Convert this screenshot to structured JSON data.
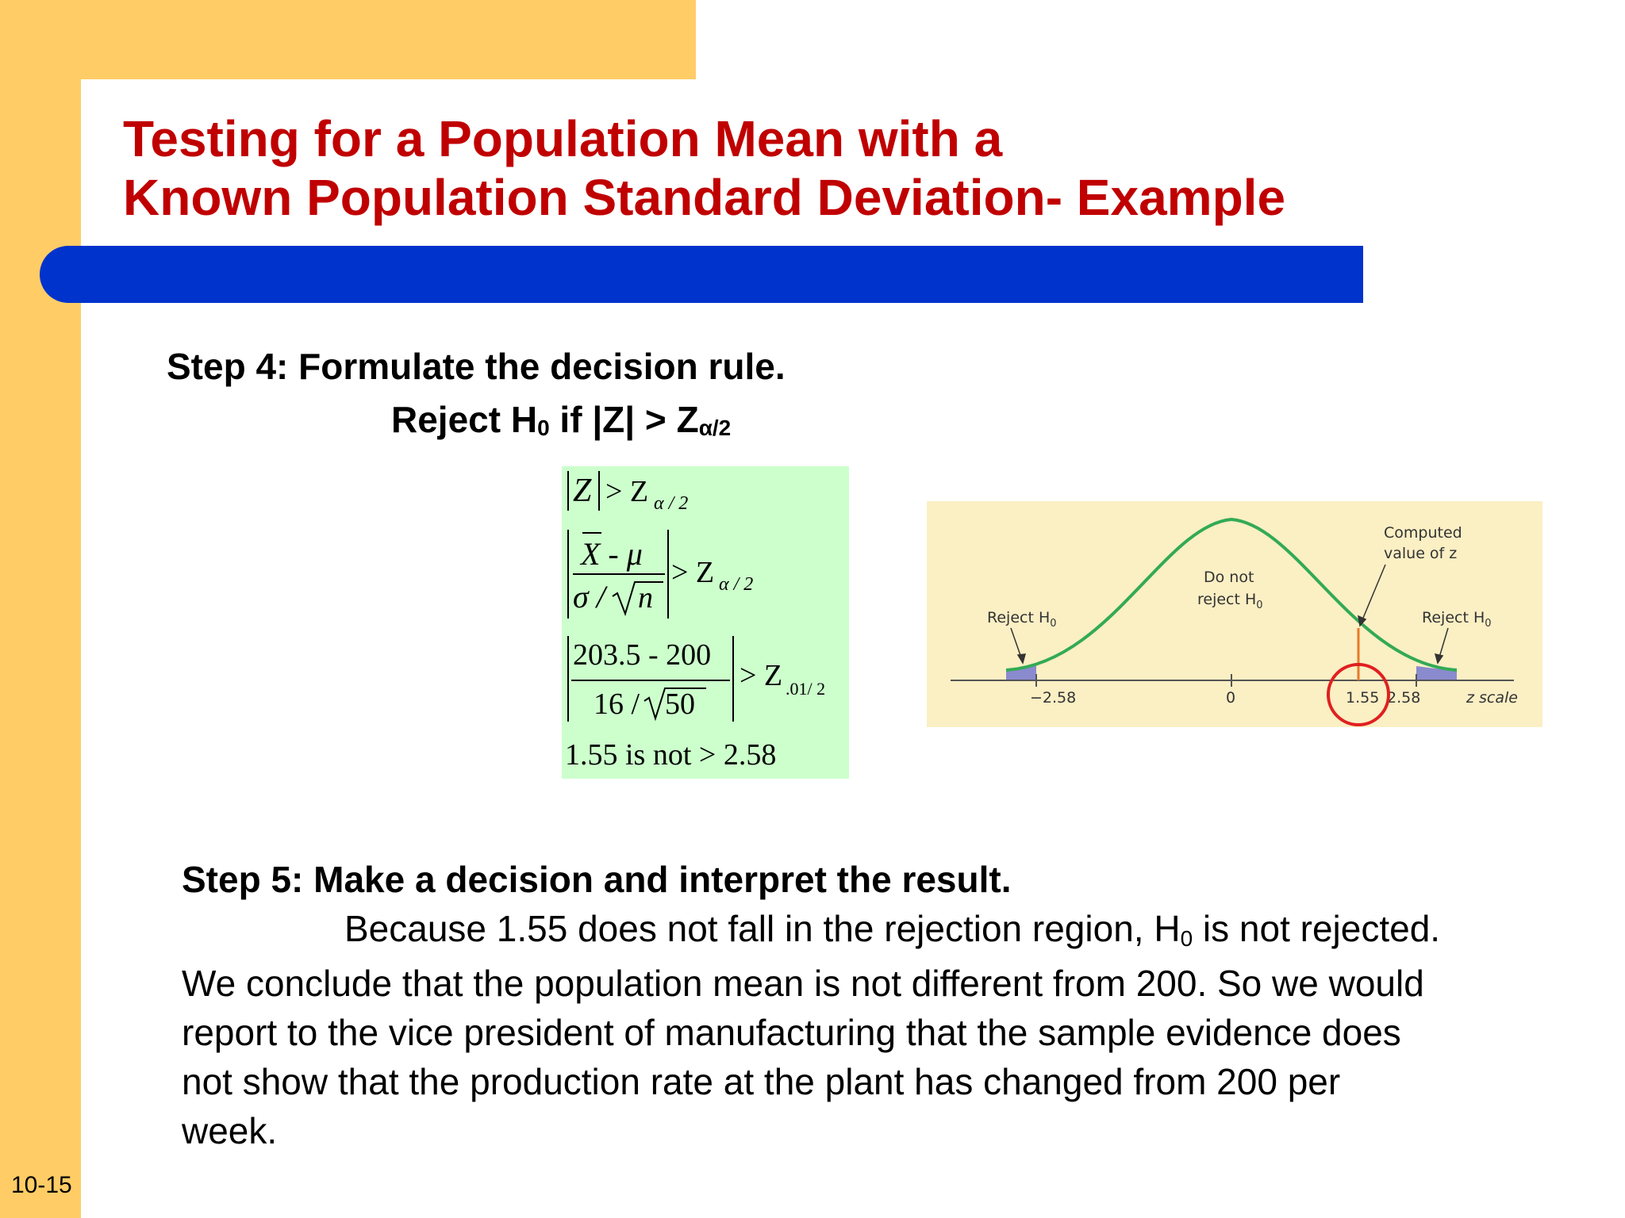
{
  "slide": {
    "title_line1": "Testing for a Population Mean with a",
    "title_line2": "Known Population Standard Deviation- Example",
    "number": "10-15"
  },
  "step4": {
    "heading": "Step 4: Formulate the decision rule.",
    "rule_prefix": "Reject H",
    "rule_h_sub": "0",
    "rule_mid": " if |Z| > Z",
    "rule_z_sub": "α/2"
  },
  "formula": {
    "line1_lhs": "Z",
    "line1_rhs": "> Z",
    "line1_sub": "α / 2",
    "line2_num": "X - μ",
    "line2_den_left": "σ /",
    "line2_den_root": "n",
    "line2_rhs": "> Z",
    "line2_sub": "α / 2",
    "line3_num": "203.5 -  200",
    "line3_den_left": "16 /",
    "line3_den_root": "50",
    "line3_rhs": "> Z",
    "line3_sub": ".01/ 2",
    "line4": "1.55 is not > 2.58"
  },
  "figure": {
    "label_reject_left": "Reject H",
    "label_reject_left_sub": "0",
    "label_do_not_1": "Do not",
    "label_do_not_2": "reject H",
    "label_do_not_sub": "0",
    "label_computed_1": "Computed",
    "label_computed_2": "value of z",
    "label_reject_right": "Reject H",
    "label_reject_right_sub": "0",
    "tick_neg": "−2.58",
    "tick_zero": "0",
    "tick_computed": "1.55",
    "tick_pos": "2.58",
    "axis_label": "z scale",
    "colors": {
      "background": "#FBEFC4",
      "curve": "#33AA55",
      "tail_fill": "#8A8ACF",
      "marker_line": "#E87A2A",
      "circle": "#E02020"
    }
  },
  "step5": {
    "heading": "Step 5: Make a decision and interpret the result.",
    "line1_a": "Because 1.55 does not fall in the rejection region, H",
    "line1_sub": "0",
    "line1_b": " is not rejected.",
    "line2": "We conclude that the population mean is not different from 200. So we would",
    "line3": "report to the vice president of manufacturing that the sample evidence does",
    "line4": "not show that the production rate at the plant has changed from 200 per",
    "line5": "week."
  },
  "colors": {
    "title": "#C00000",
    "side_band": "#FFCC66",
    "title_bar": "#0033CC",
    "formula_box": "#CCFFCC"
  }
}
